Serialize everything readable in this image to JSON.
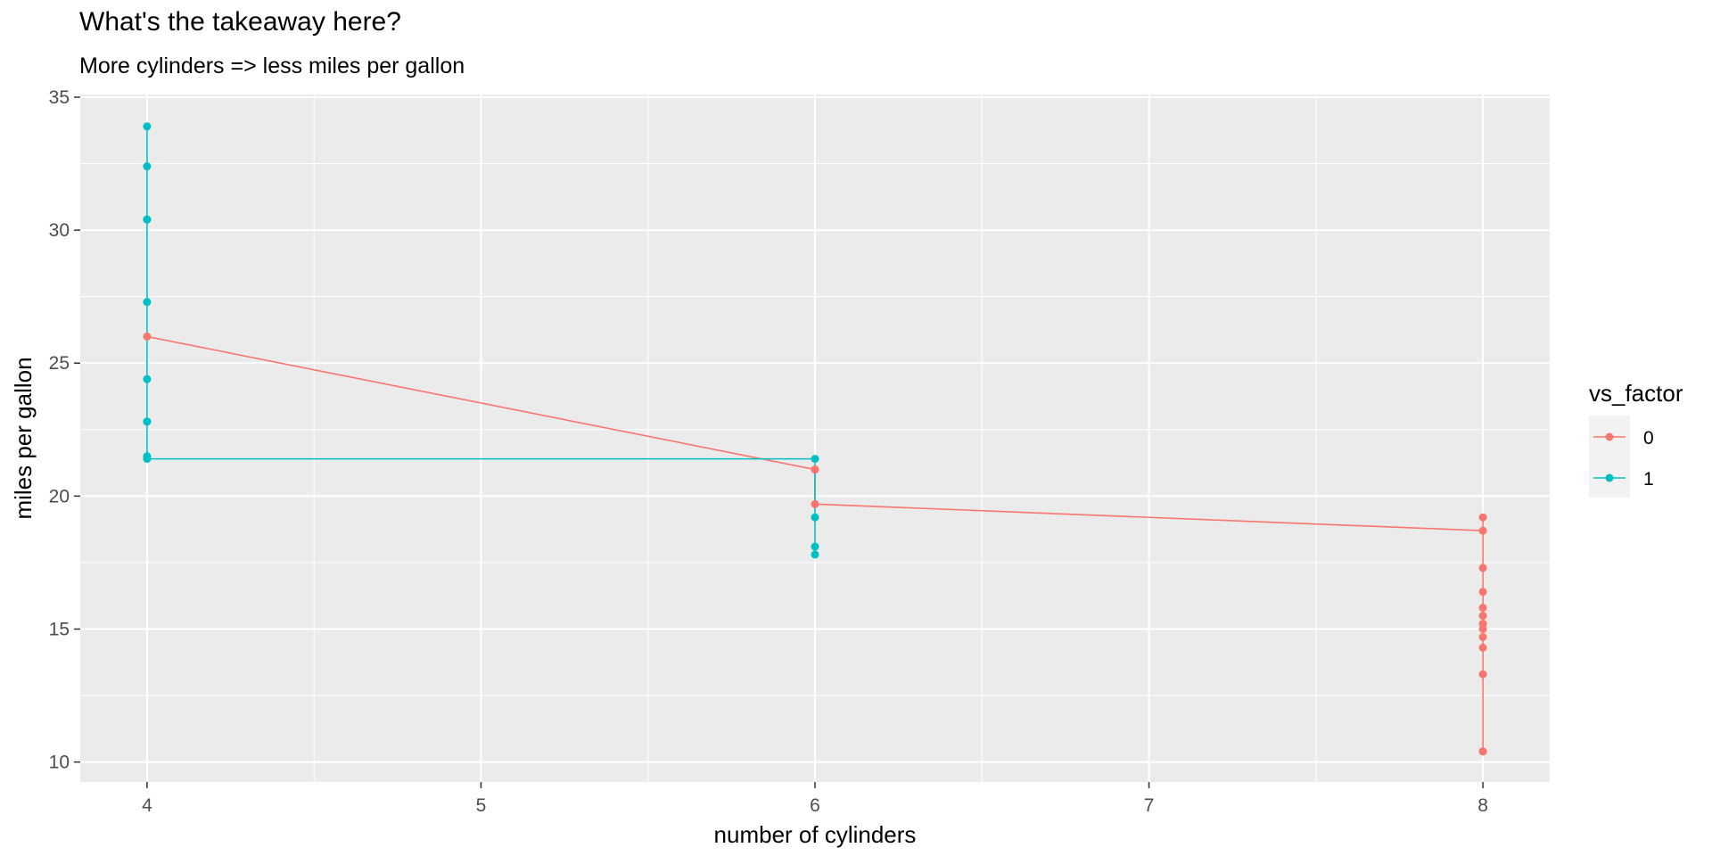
{
  "chart_data": {
    "type": "line",
    "title": "What's the takeaway here?",
    "subtitle": "More cylinders => less miles per gallon",
    "xlabel": "number of cylinders",
    "ylabel": "miles per gallon",
    "xlim": [
      3.8,
      8.2
    ],
    "ylim": [
      9.25,
      35.1
    ],
    "x_ticks": [
      4,
      5,
      6,
      7,
      8
    ],
    "y_ticks": [
      10,
      15,
      20,
      25,
      30,
      35
    ],
    "grid": true,
    "legend": {
      "title": "vs_factor",
      "position": "right"
    },
    "series": [
      {
        "name": "0",
        "color": "#F8766D",
        "points": [
          [
            4,
            26.0
          ],
          [
            6,
            21.0
          ],
          [
            6,
            21.0
          ],
          [
            6,
            19.7
          ],
          [
            8,
            18.7
          ],
          [
            8,
            14.3
          ],
          [
            8,
            16.4
          ],
          [
            8,
            17.3
          ],
          [
            8,
            15.2
          ],
          [
            8,
            10.4
          ],
          [
            8,
            10.4
          ],
          [
            8,
            14.7
          ],
          [
            8,
            15.5
          ],
          [
            8,
            15.2
          ],
          [
            8,
            13.3
          ],
          [
            8,
            19.2
          ],
          [
            8,
            15.8
          ],
          [
            8,
            15.0
          ]
        ]
      },
      {
        "name": "1",
        "color": "#00BFC4",
        "points": [
          [
            4,
            22.8
          ],
          [
            4,
            24.4
          ],
          [
            4,
            22.8
          ],
          [
            4,
            32.4
          ],
          [
            4,
            30.4
          ],
          [
            4,
            33.9
          ],
          [
            4,
            21.5
          ],
          [
            4,
            27.3
          ],
          [
            4,
            30.4
          ],
          [
            4,
            21.4
          ],
          [
            6,
            21.4
          ],
          [
            6,
            18.1
          ],
          [
            6,
            19.2
          ],
          [
            6,
            17.8
          ]
        ]
      }
    ]
  }
}
